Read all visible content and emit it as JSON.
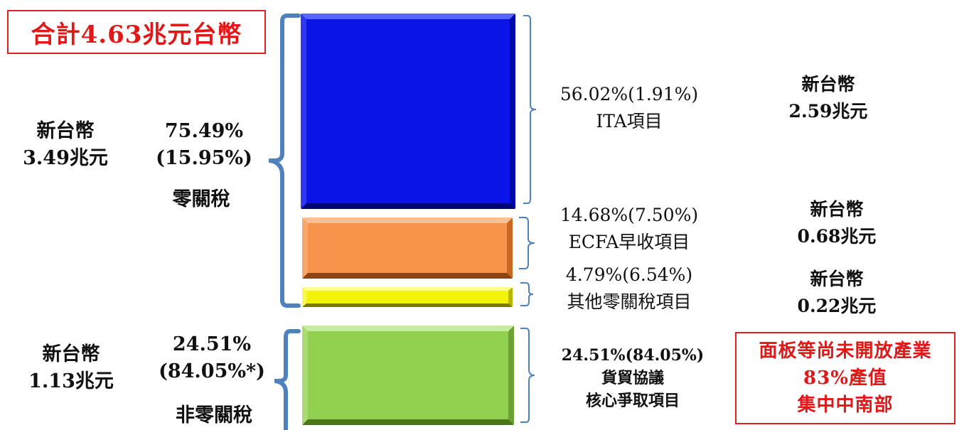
{
  "title_box": {
    "text": "合計4.63兆元台幣"
  },
  "zero_tariff": {
    "amount_line1": "新台幣",
    "amount_line2": "3.49兆元",
    "percent_line1": "75.49%",
    "percent_line2": "(15.95%)",
    "label": "零關稅"
  },
  "non_zero_tariff": {
    "amount_line1": "新台幣",
    "amount_line2": "1.13兆元",
    "percent_line1": "24.51%",
    "percent_line2": "(84.05%*)",
    "label": "非零關稅"
  },
  "segments": [
    {
      "id": "ita",
      "pct_line": "56.02%(1.91%)",
      "name": "ITA項目",
      "amount_line1": "新台幣",
      "amount_line2": "2.59兆元",
      "color": "#0a14e6"
    },
    {
      "id": "ecfa",
      "pct_line": "14.68%(7.50%)",
      "name": "ECFA早收項目",
      "amount_line1": "新台幣",
      "amount_line2": "0.68兆元",
      "color": "#f7934b"
    },
    {
      "id": "other",
      "pct_line": "4.79%(6.54%)",
      "name": "其他零關稅項目",
      "amount_line1": "新台幣",
      "amount_line2": "0.22兆元",
      "color": "#f2f20a"
    },
    {
      "id": "core",
      "pct_line": "24.51%(84.05%)",
      "name_line1": "貨貿協議",
      "name_line2": "核心爭取項目",
      "color": "#92d050"
    }
  ],
  "note_box": {
    "line1": "面板等尚未開放產業",
    "line2": "83%產值",
    "line3": "集中中南部"
  }
}
